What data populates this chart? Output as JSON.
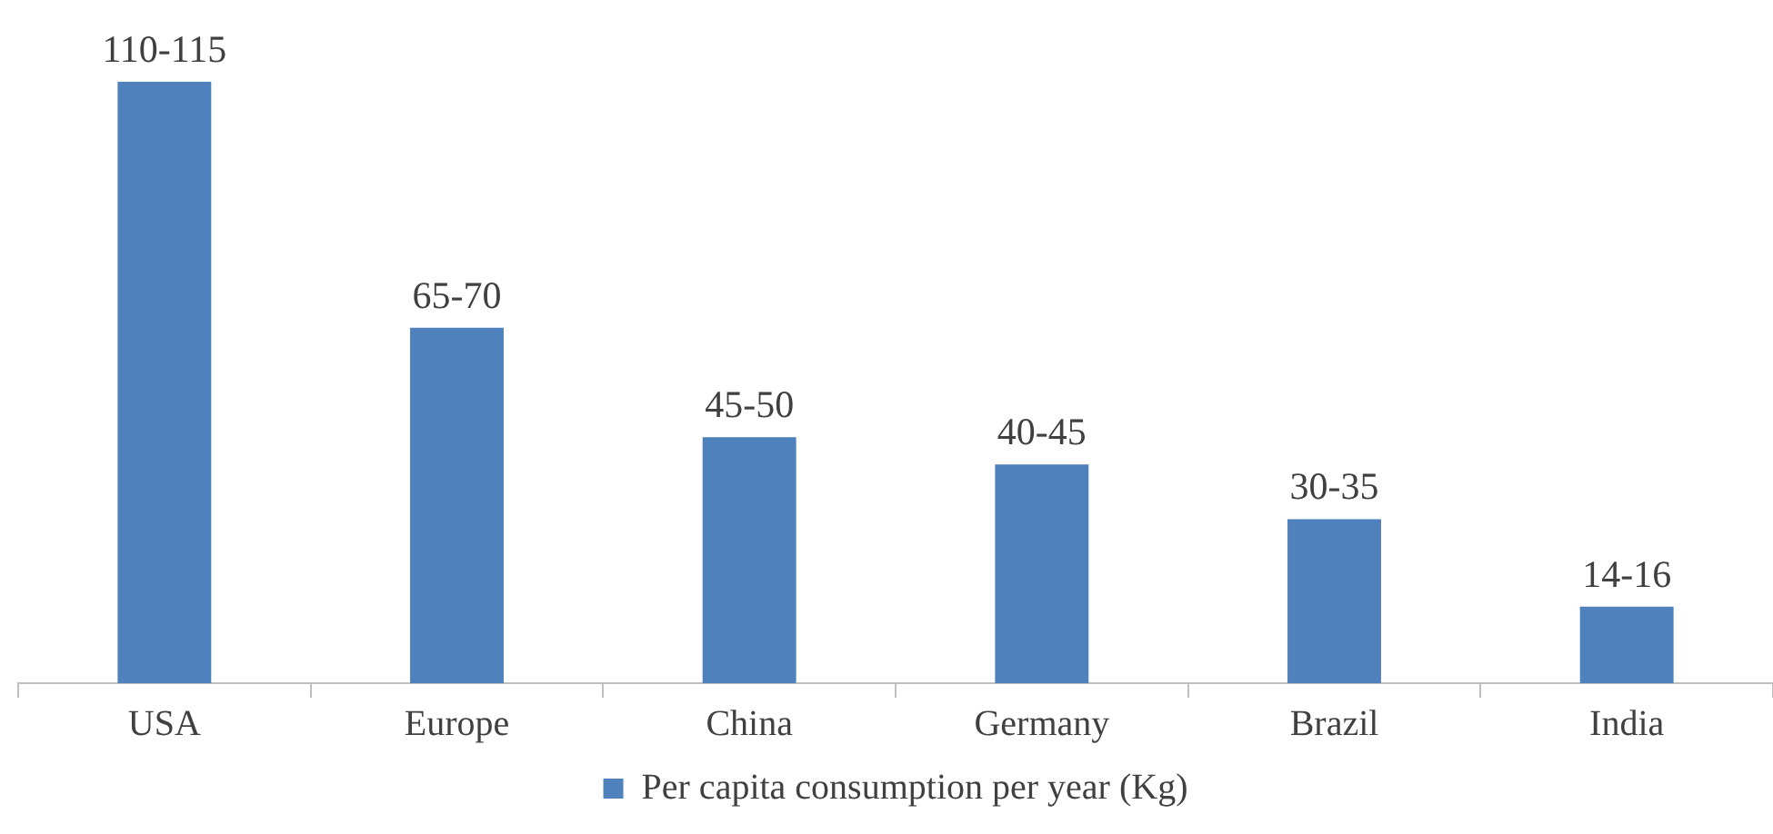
{
  "chart_data": {
    "type": "bar",
    "categories": [
      "USA",
      "Europe",
      "China",
      "Germany",
      "Brazil",
      "India"
    ],
    "series": [
      {
        "name": "Per capita consumption per year (Kg)",
        "color": "#4f81bd",
        "values": [
          110,
          65,
          45,
          40,
          30,
          14
        ],
        "value_labels": [
          "110-115",
          "65-70",
          "45-50",
          "40-45",
          "30-35",
          "14-16"
        ]
      }
    ],
    "legend": "bottom",
    "grid": false
  }
}
